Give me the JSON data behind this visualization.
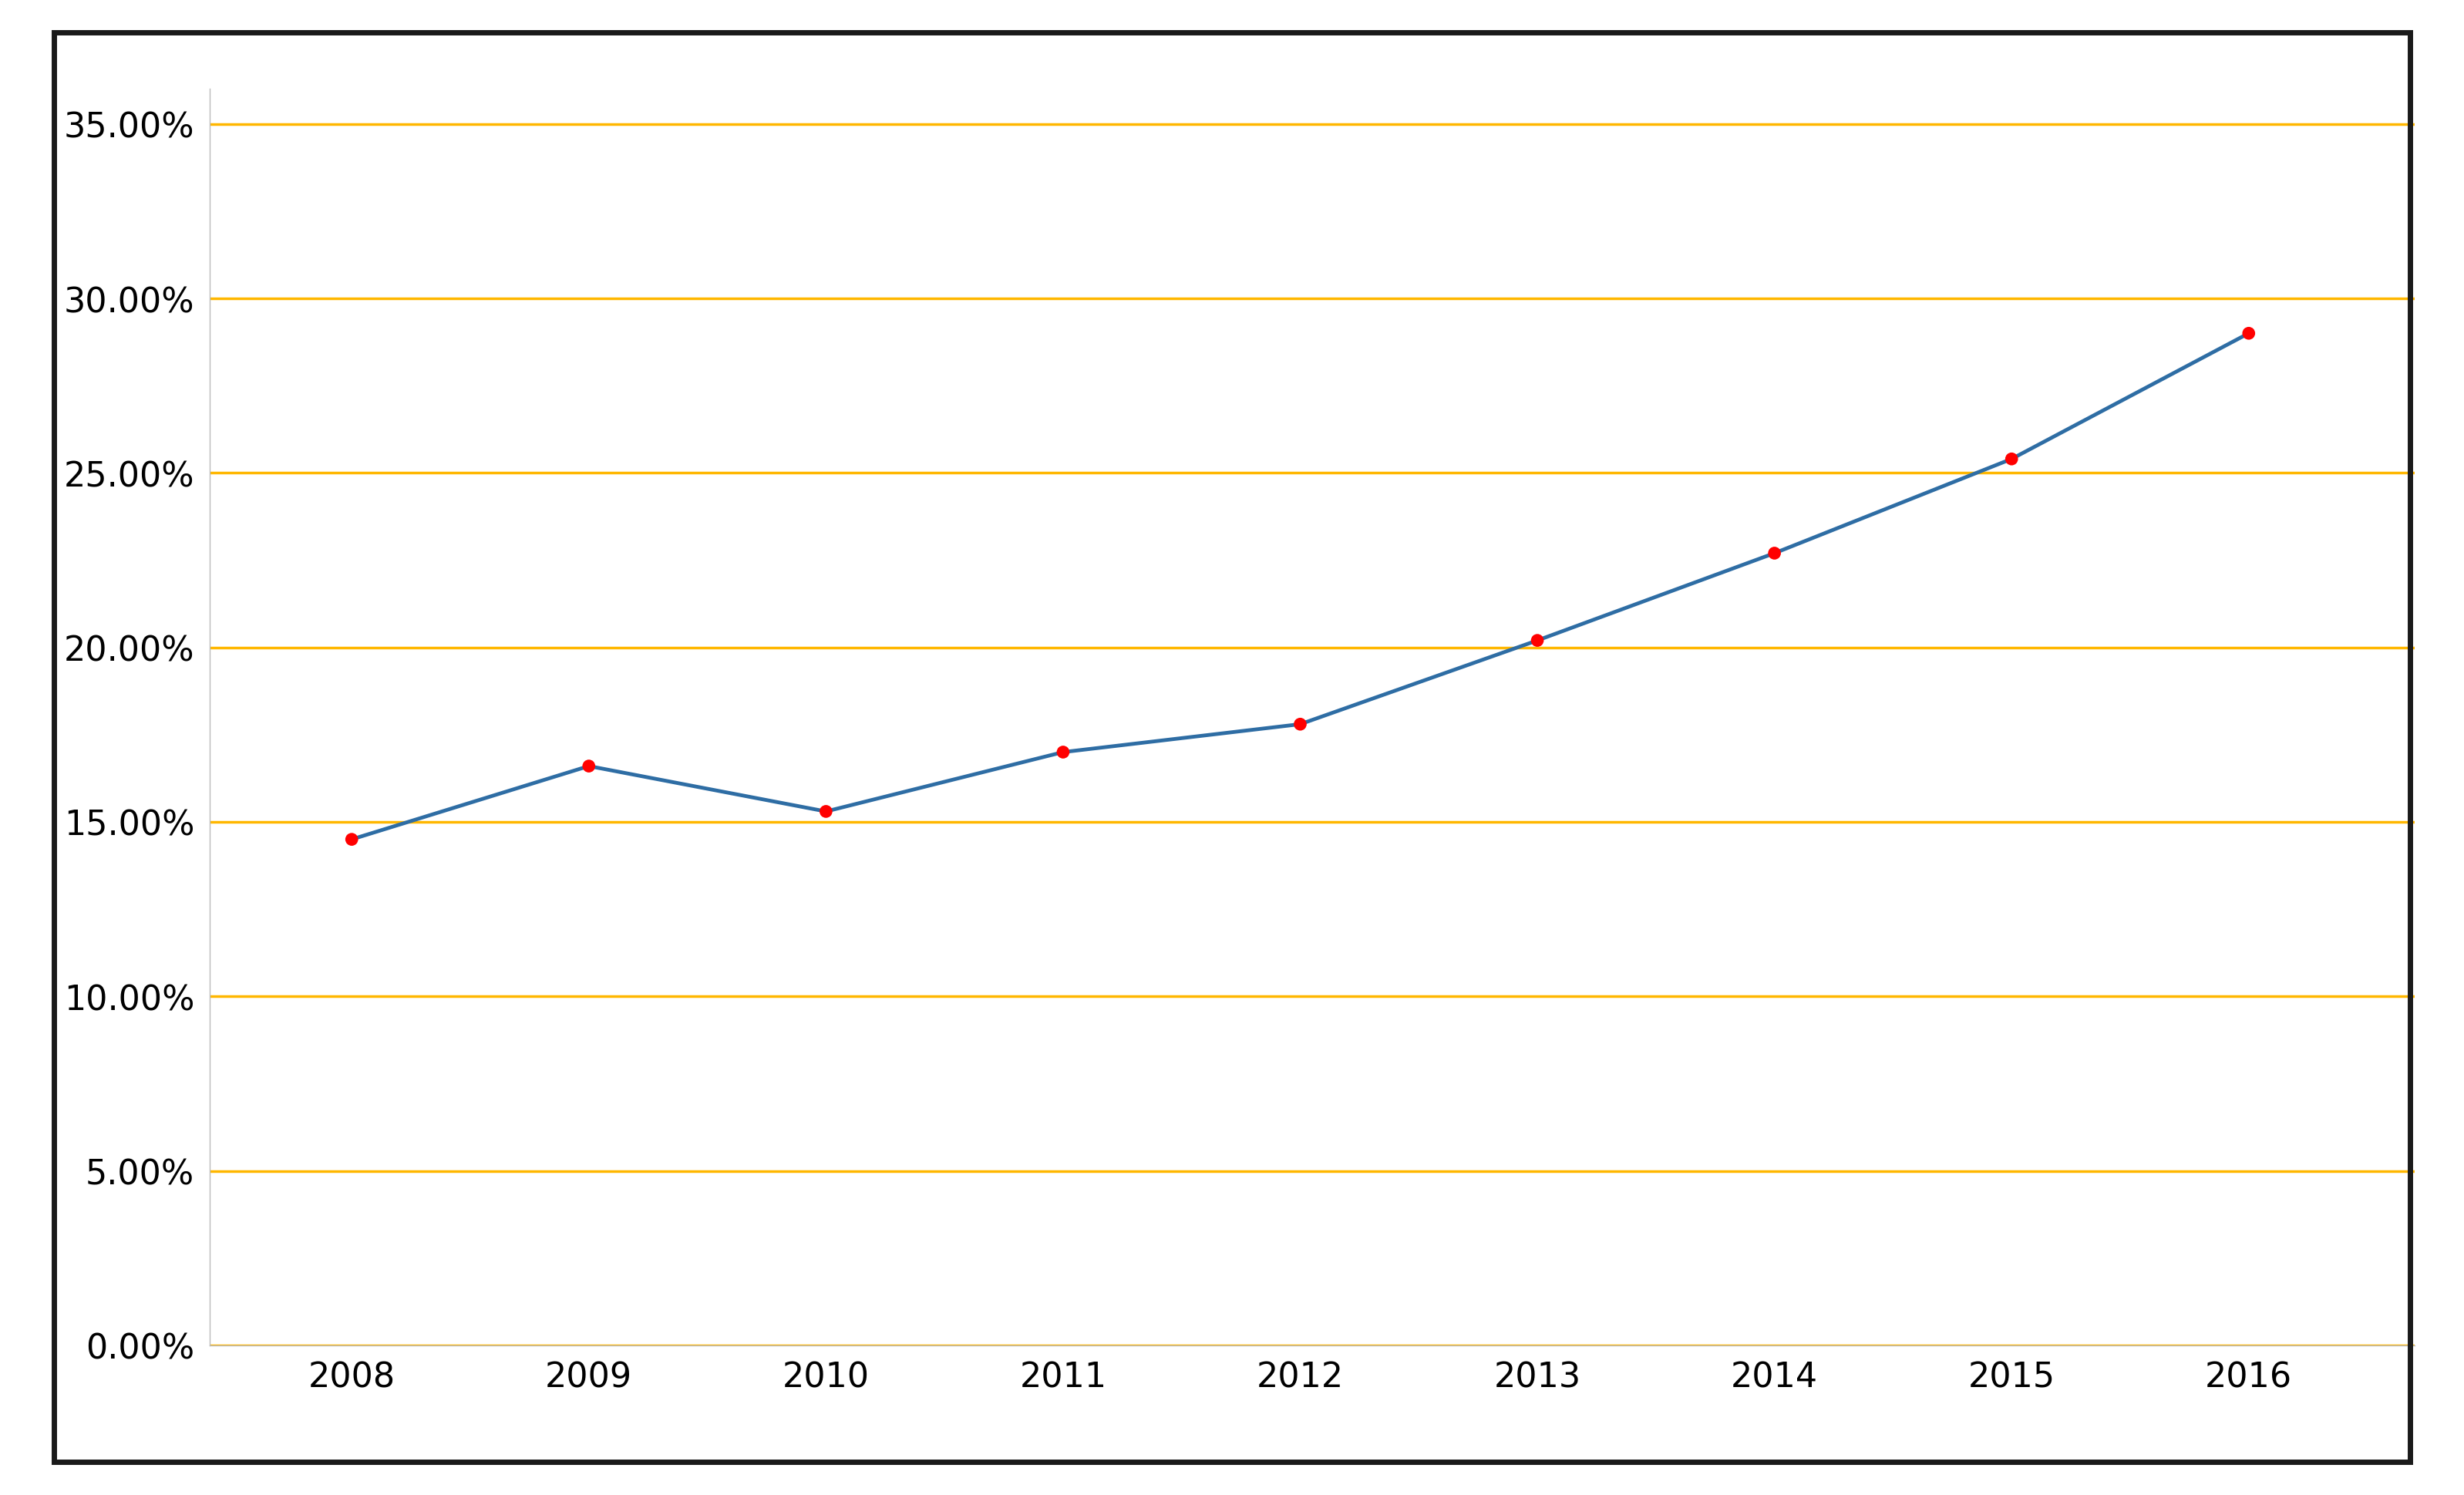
{
  "years": [
    2008,
    2009,
    2010,
    2011,
    2012,
    2013,
    2014,
    2015,
    2016
  ],
  "values": [
    0.145,
    0.166,
    0.153,
    0.17,
    0.178,
    0.202,
    0.227,
    0.254,
    0.29
  ],
  "line_color": "#2E6DA4",
  "marker_color": "#FF0000",
  "grid_color": "#FFB700",
  "background_color": "#FFFFFF",
  "border_color": "#1A1A1A",
  "ylim": [
    0.0,
    0.36
  ],
  "yticks": [
    0.0,
    0.05,
    0.1,
    0.15,
    0.2,
    0.25,
    0.3,
    0.35
  ],
  "ytick_labels": [
    "0.00%",
    "5.00%",
    "10.00%",
    "15.00%",
    "20.00%",
    "25.00%",
    "30.00%",
    "35.00%"
  ],
  "line_width": 3.5,
  "marker_size": 12,
  "tick_fontsize": 32,
  "border_linewidth": 5
}
